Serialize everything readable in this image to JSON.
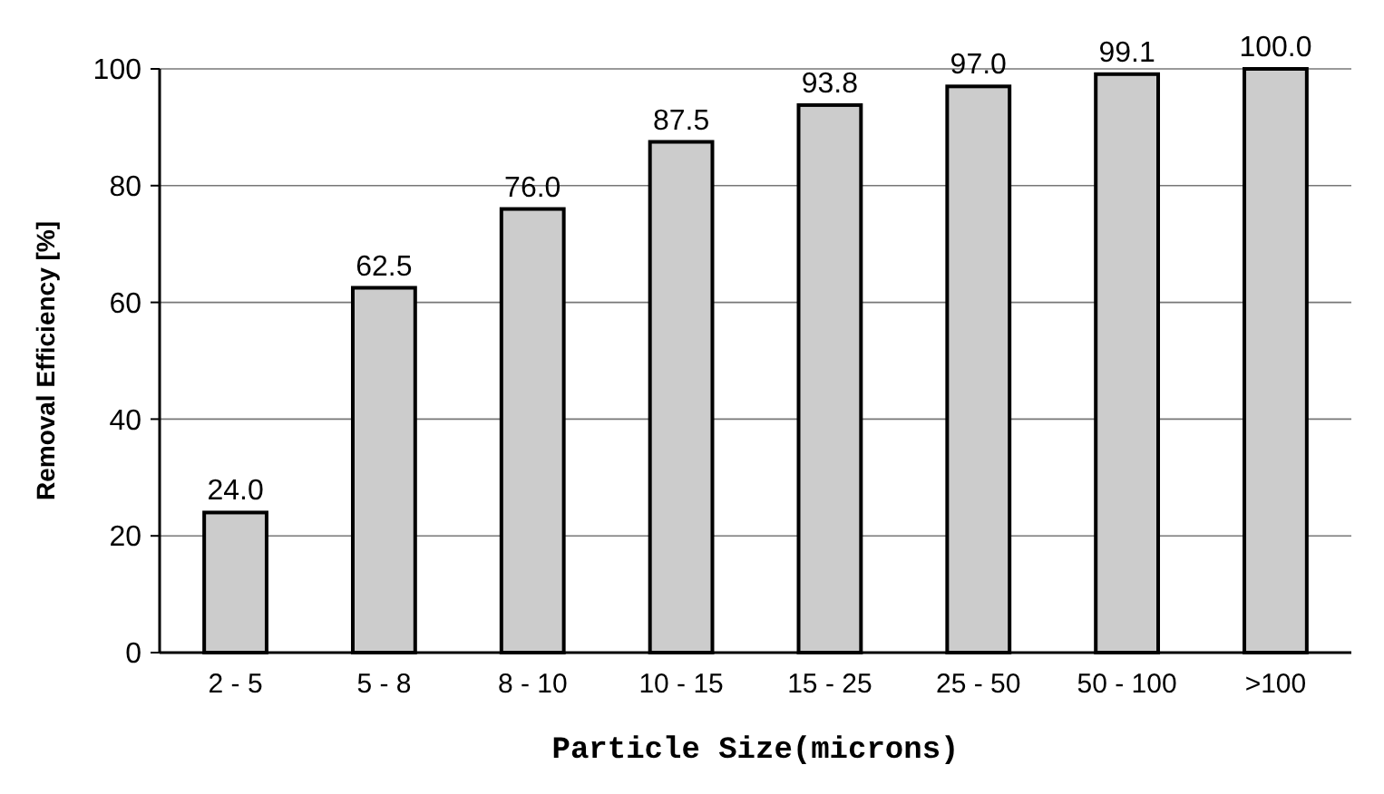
{
  "chart_data": {
    "type": "bar",
    "xlabel": "Particle Size(microns)",
    "ylabel": "Removal Efficiency [%]",
    "categories": [
      "2 - 5",
      "5 - 8",
      "8 - 10",
      "10 - 15",
      "15 - 25",
      "25 - 50",
      "50 - 100",
      ">100"
    ],
    "values": [
      24.0,
      62.5,
      76.0,
      87.5,
      93.8,
      97.0,
      99.1,
      100.0
    ],
    "value_labels": [
      "24.0",
      "62.5",
      "76.0",
      "87.5",
      "93.8",
      "97.0",
      "99.1",
      "100.0"
    ],
    "color": "#cccccc",
    "ylim": [
      0,
      100
    ],
    "yticks": [
      0,
      20,
      40,
      60,
      80,
      100
    ],
    "grid": "y"
  }
}
